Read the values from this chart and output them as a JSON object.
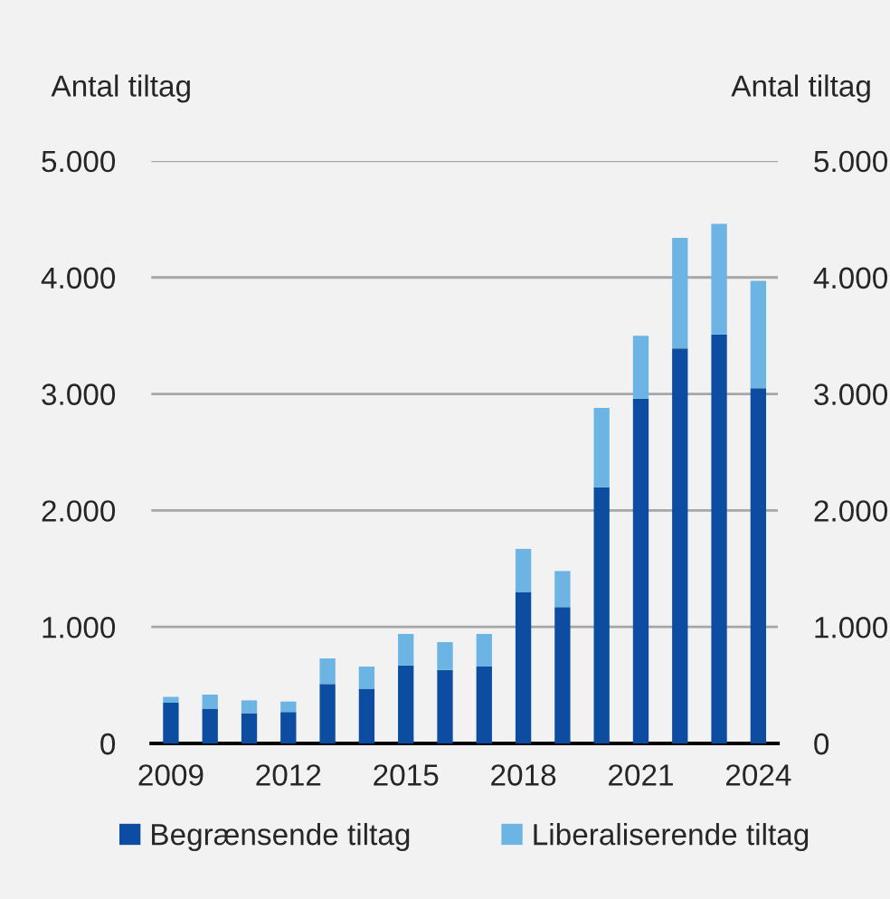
{
  "chart_data": {
    "type": "bar",
    "stacked": true,
    "categories": [
      "2009",
      null,
      null,
      "2012",
      null,
      null,
      "2015",
      null,
      null,
      "2018",
      null,
      null,
      "2021",
      null,
      null,
      "2024"
    ],
    "series": [
      {
        "name": "Begrænsende tiltag",
        "color": "#0c4da2",
        "values": [
          350,
          300,
          260,
          270,
          510,
          470,
          670,
          630,
          660,
          1300,
          1170,
          2200,
          2960,
          3390,
          3510,
          3050
        ]
      },
      {
        "name": "Liberaliserende tiltag",
        "color": "#6cb4e4",
        "values": [
          50,
          120,
          110,
          90,
          220,
          190,
          270,
          240,
          280,
          370,
          310,
          680,
          540,
          950,
          950,
          920
        ]
      }
    ],
    "ylabel": "Antal tiltag",
    "y2label": "Antal tiltag",
    "ylim": [
      0,
      5000
    ],
    "yticks": [
      {
        "value": 0,
        "label": "0"
      },
      {
        "value": 1000,
        "label": "1.000"
      },
      {
        "value": 2000,
        "label": "2.000"
      },
      {
        "value": 3000,
        "label": "3.000"
      },
      {
        "value": 4000,
        "label": "4.000"
      },
      {
        "value": 5000,
        "label": "5.000"
      }
    ],
    "y2lim": [
      0,
      5000
    ],
    "y2ticks": [
      {
        "value": 0,
        "label": "0"
      },
      {
        "value": 1000,
        "label": "1.000"
      },
      {
        "value": 2000,
        "label": "2.000"
      },
      {
        "value": 3000,
        "label": "3.000"
      },
      {
        "value": 4000,
        "label": "4.000"
      },
      {
        "value": 5000,
        "label": "5.000"
      }
    ],
    "grid": "y",
    "legend": "bottom"
  }
}
